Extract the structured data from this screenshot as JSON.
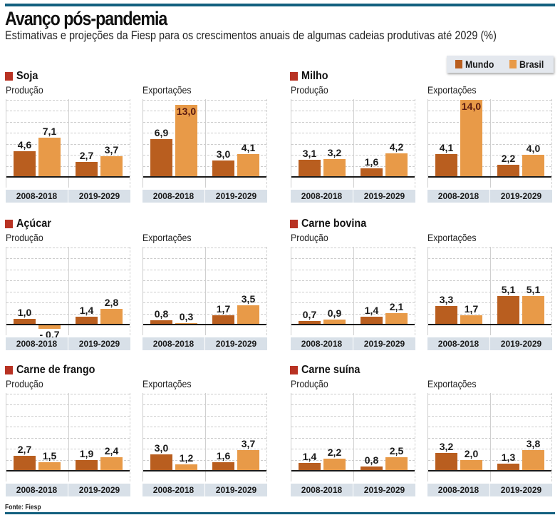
{
  "title": "Avanço pós-pandemia",
  "subtitle": "Estimativas e projeções da Fiesp para os crescimentos anuais de algumas cadeias produtivas até 2029 (%)",
  "source": "Fonte: Fiesp",
  "colors": {
    "rule": "#13607F",
    "mundo": "#B95E1F",
    "brasil": "#E89A48",
    "group_marker": "#B83223",
    "period_band": "#D8E0E8"
  },
  "legend": {
    "items": [
      {
        "label": "Mundo",
        "color": "#B95E1F"
      },
      {
        "label": "Brasil",
        "color": "#E89A48"
      }
    ]
  },
  "chart_data": {
    "type": "bar",
    "title": "Avanço pós-pandemia",
    "subtitle": "Estimativas e projeções da Fiesp para os crescimentos anuais de algumas cadeias produtivas até 2029 (%)",
    "xlabel": "",
    "ylabel": "%",
    "ylim": [
      -2,
      14
    ],
    "grid": true,
    "legend_position": "top-right",
    "series_names": [
      "Mundo",
      "Brasil"
    ],
    "periods": [
      "2008-2018",
      "2019-2029"
    ],
    "groups": [
      {
        "name": "Soja",
        "panels": [
          {
            "label": "Produção",
            "values": {
              "Mundo": [
                4.6,
                2.7
              ],
              "Brasil": [
                7.1,
                3.7
              ]
            },
            "labels": {
              "Mundo": [
                "4,6",
                "2,7"
              ],
              "Brasil": [
                "7,1",
                "3,7"
              ]
            }
          },
          {
            "label": "Exportações",
            "values": {
              "Mundo": [
                6.9,
                3.0
              ],
              "Brasil": [
                13.0,
                4.1
              ]
            },
            "labels": {
              "Mundo": [
                "6,9",
                "3,0"
              ],
              "Brasil": [
                "13,0",
                "4,1"
              ]
            }
          }
        ]
      },
      {
        "name": "Milho",
        "panels": [
          {
            "label": "Produção",
            "values": {
              "Mundo": [
                3.1,
                1.6
              ],
              "Brasil": [
                3.2,
                4.2
              ]
            },
            "labels": {
              "Mundo": [
                "3,1",
                "1,6"
              ],
              "Brasil": [
                "3,2",
                "4,2"
              ]
            }
          },
          {
            "label": "Exportações",
            "values": {
              "Mundo": [
                4.1,
                2.2
              ],
              "Brasil": [
                14.0,
                4.0
              ]
            },
            "labels": {
              "Mundo": [
                "4,1",
                "2,2"
              ],
              "Brasil": [
                "14,0",
                "4,0"
              ]
            }
          }
        ]
      },
      {
        "name": "Açúcar",
        "panels": [
          {
            "label": "Produção",
            "values": {
              "Mundo": [
                1.0,
                1.4
              ],
              "Brasil": [
                -0.7,
                2.8
              ]
            },
            "labels": {
              "Mundo": [
                "1,0",
                "1,4"
              ],
              "Brasil": [
                "- 0,7",
                "2,8"
              ]
            }
          },
          {
            "label": "Exportações",
            "values": {
              "Mundo": [
                0.8,
                1.7
              ],
              "Brasil": [
                0.3,
                3.5
              ]
            },
            "labels": {
              "Mundo": [
                "0,8",
                "1,7"
              ],
              "Brasil": [
                "0,3",
                "3,5"
              ]
            }
          }
        ]
      },
      {
        "name": "Carne bovina",
        "panels": [
          {
            "label": "Produção",
            "values": {
              "Mundo": [
                0.7,
                1.4
              ],
              "Brasil": [
                0.9,
                2.1
              ]
            },
            "labels": {
              "Mundo": [
                "0,7",
                "1,4"
              ],
              "Brasil": [
                "0,9",
                "2,1"
              ]
            }
          },
          {
            "label": "Exportações",
            "values": {
              "Mundo": [
                3.3,
                5.1
              ],
              "Brasil": [
                1.7,
                5.1
              ]
            },
            "labels": {
              "Mundo": [
                "3,3",
                "5,1"
              ],
              "Brasil": [
                "1,7",
                "5,1"
              ]
            }
          }
        ]
      },
      {
        "name": "Carne de frango",
        "panels": [
          {
            "label": "Produção",
            "values": {
              "Mundo": [
                2.7,
                1.9
              ],
              "Brasil": [
                1.5,
                2.4
              ]
            },
            "labels": {
              "Mundo": [
                "2,7",
                "1,9"
              ],
              "Brasil": [
                "1,5",
                "2,4"
              ]
            }
          },
          {
            "label": "Exportações",
            "values": {
              "Mundo": [
                3.0,
                1.6
              ],
              "Brasil": [
                1.2,
                3.7
              ]
            },
            "labels": {
              "Mundo": [
                "3,0",
                "1,6"
              ],
              "Brasil": [
                "1,2",
                "3,7"
              ]
            }
          }
        ]
      },
      {
        "name": "Carne suína",
        "panels": [
          {
            "label": "Produção",
            "values": {
              "Mundo": [
                1.4,
                0.8
              ],
              "Brasil": [
                2.2,
                2.5
              ]
            },
            "labels": {
              "Mundo": [
                "1,4",
                "0,8"
              ],
              "Brasil": [
                "2,2",
                "2,5"
              ]
            }
          },
          {
            "label": "Exportações",
            "values": {
              "Mundo": [
                3.2,
                1.3
              ],
              "Brasil": [
                2.0,
                3.8
              ]
            },
            "labels": {
              "Mundo": [
                "3,2",
                "1,3"
              ],
              "Brasil": [
                "2,0",
                "3,8"
              ]
            }
          }
        ]
      }
    ]
  }
}
